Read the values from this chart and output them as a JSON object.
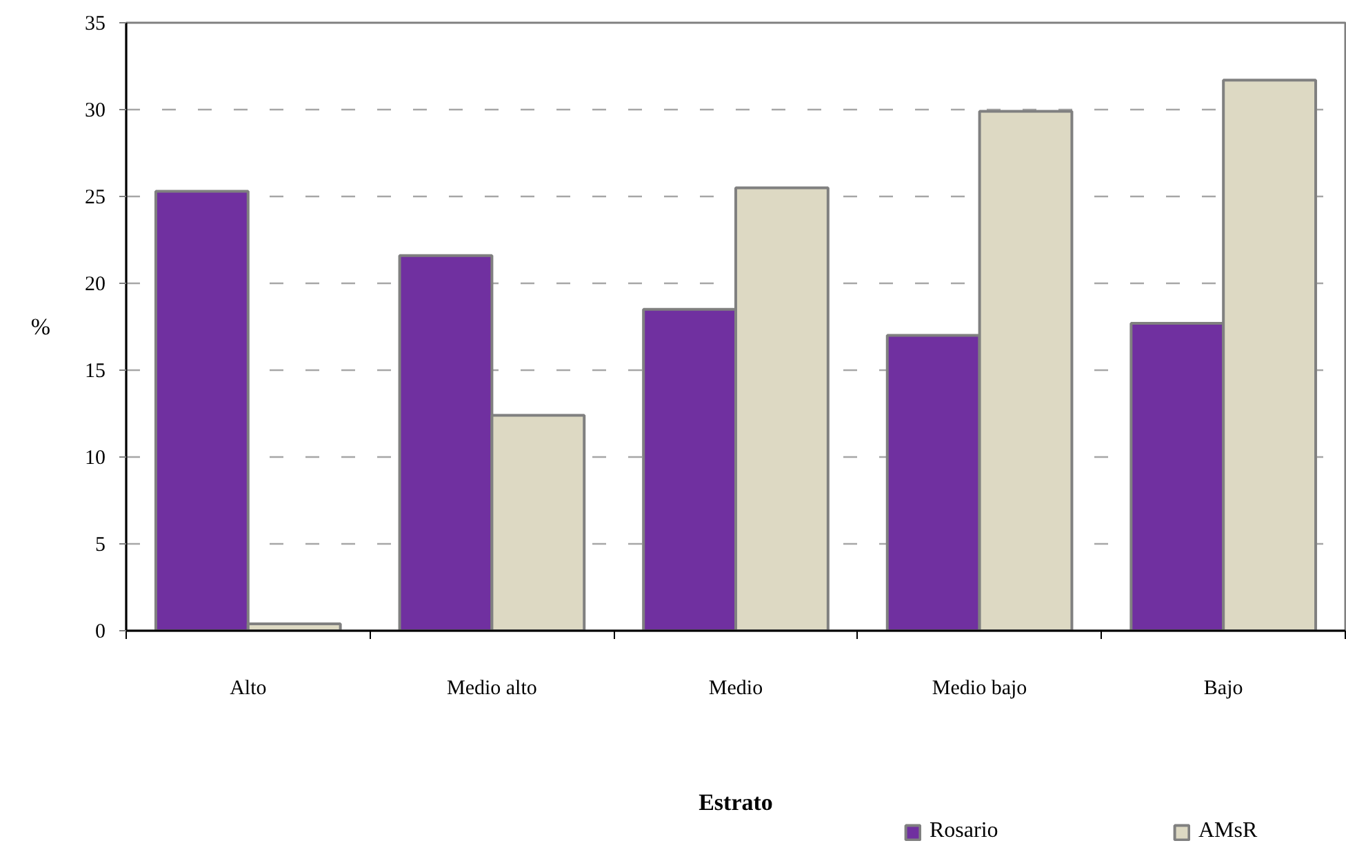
{
  "chart_data": {
    "type": "bar",
    "xlabel": "Estrato",
    "ylabel": "%",
    "categories": [
      "Alto",
      "Medio alto",
      "Medio",
      "Medio bajo",
      "Bajo"
    ],
    "series": [
      {
        "name": "Rosario",
        "color": "#7030a0",
        "values": [
          25.3,
          21.6,
          18.5,
          17.0,
          17.7
        ]
      },
      {
        "name": "AMsR",
        "color": "#ddd9c3",
        "values": [
          0.4,
          12.4,
          25.5,
          29.9,
          31.7
        ]
      }
    ],
    "ylim": [
      0,
      35
    ],
    "yticks": [
      0,
      5,
      10,
      15,
      20,
      25,
      30,
      35
    ],
    "grid": "y",
    "legend": "bottom right"
  }
}
